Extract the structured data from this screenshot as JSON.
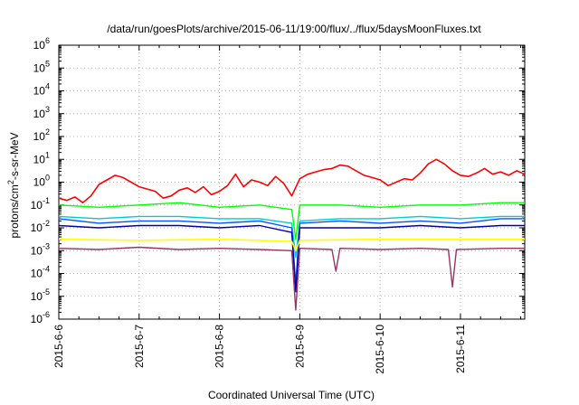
{
  "chart_data": {
    "type": "line",
    "title": "/data/run/goesPlots/archive/2015-06-11/19:00/flux/../flux/5daysMoonFluxes.txt",
    "xlabel": "Coordinated Universal Time (UTC)",
    "ylabel_main": "protons/cm",
    "ylabel_sup": "2",
    "ylabel_rest": "-s-sr-MeV",
    "y_scale": "log",
    "ylim_exp": [
      -6,
      6
    ],
    "y_ticks": [
      {
        "base": "10",
        "exp": "-6"
      },
      {
        "base": "10",
        "exp": "-5"
      },
      {
        "base": "10",
        "exp": "-4"
      },
      {
        "base": "10",
        "exp": "-3"
      },
      {
        "base": "10",
        "exp": "-2"
      },
      {
        "base": "10",
        "exp": "-1"
      },
      {
        "base": "10",
        "exp": "0"
      },
      {
        "base": "10",
        "exp": "1"
      },
      {
        "base": "10",
        "exp": "2"
      },
      {
        "base": "10",
        "exp": "3"
      },
      {
        "base": "10",
        "exp": "4"
      },
      {
        "base": "10",
        "exp": "5"
      },
      {
        "base": "10",
        "exp": "6"
      }
    ],
    "xlim_days": [
      0,
      5.8
    ],
    "x_ticks": [
      "2015-6-6",
      "2015-6-7",
      "2015-6-8",
      "2015-6-9",
      "2015-6-10",
      "2015-6-11"
    ],
    "grid": true,
    "legend": "none",
    "series": [
      {
        "color": "#ff0000",
        "width": 1.6,
        "values": [
          [
            0,
            -0.7
          ],
          [
            0.1,
            -0.8
          ],
          [
            0.2,
            -0.65
          ],
          [
            0.3,
            -0.9
          ],
          [
            0.4,
            -0.6
          ],
          [
            0.5,
            -0.1
          ],
          [
            0.6,
            0.1
          ],
          [
            0.7,
            0.3
          ],
          [
            0.8,
            0.2
          ],
          [
            0.9,
            0.0
          ],
          [
            1.0,
            -0.2
          ],
          [
            1.1,
            -0.3
          ],
          [
            1.2,
            -0.4
          ],
          [
            1.3,
            -0.7
          ],
          [
            1.4,
            -0.6
          ],
          [
            1.5,
            -0.35
          ],
          [
            1.6,
            -0.25
          ],
          [
            1.7,
            -0.45
          ],
          [
            1.8,
            -0.2
          ],
          [
            1.9,
            -0.55
          ],
          [
            2.0,
            -0.4
          ],
          [
            2.1,
            -0.15
          ],
          [
            2.2,
            0.35
          ],
          [
            2.3,
            -0.2
          ],
          [
            2.4,
            0.1
          ],
          [
            2.5,
            0.0
          ],
          [
            2.6,
            -0.15
          ],
          [
            2.7,
            0.25
          ],
          [
            2.8,
            -0.05
          ],
          [
            2.9,
            -0.6
          ],
          [
            3.0,
            0.15
          ],
          [
            3.1,
            0.35
          ],
          [
            3.2,
            0.45
          ],
          [
            3.3,
            0.55
          ],
          [
            3.4,
            0.6
          ],
          [
            3.5,
            0.75
          ],
          [
            3.6,
            0.7
          ],
          [
            3.7,
            0.5
          ],
          [
            3.8,
            0.3
          ],
          [
            3.9,
            0.2
          ],
          [
            4.0,
            0.1
          ],
          [
            4.1,
            -0.15
          ],
          [
            4.2,
            0.0
          ],
          [
            4.3,
            0.15
          ],
          [
            4.4,
            0.1
          ],
          [
            4.5,
            0.4
          ],
          [
            4.6,
            0.8
          ],
          [
            4.7,
            1.0
          ],
          [
            4.8,
            0.8
          ],
          [
            4.9,
            0.5
          ],
          [
            5.0,
            0.3
          ],
          [
            5.1,
            0.25
          ],
          [
            5.2,
            0.4
          ],
          [
            5.3,
            0.6
          ],
          [
            5.4,
            0.35
          ],
          [
            5.5,
            0.45
          ],
          [
            5.6,
            0.3
          ],
          [
            5.7,
            0.5
          ],
          [
            5.8,
            0.35
          ]
        ]
      },
      {
        "color": "#00ff00",
        "width": 1.4,
        "values": [
          [
            0,
            -1.0
          ],
          [
            0.5,
            -1.1
          ],
          [
            1.0,
            -1.0
          ],
          [
            1.5,
            -0.9
          ],
          [
            2.0,
            -1.1
          ],
          [
            2.5,
            -1.0
          ],
          [
            2.9,
            -1.2
          ],
          [
            2.95,
            -2.5
          ],
          [
            3.0,
            -1.0
          ],
          [
            3.5,
            -1.0
          ],
          [
            4.0,
            -1.1
          ],
          [
            4.5,
            -1.0
          ],
          [
            5.0,
            -1.0
          ],
          [
            5.5,
            -0.9
          ],
          [
            5.8,
            -0.9
          ]
        ]
      },
      {
        "color": "#00cccc",
        "width": 1.4,
        "values": [
          [
            0,
            -1.5
          ],
          [
            0.5,
            -1.6
          ],
          [
            1.0,
            -1.5
          ],
          [
            1.5,
            -1.5
          ],
          [
            2.0,
            -1.6
          ],
          [
            2.5,
            -1.6
          ],
          [
            2.9,
            -1.8
          ],
          [
            2.95,
            -3.3
          ],
          [
            3.0,
            -1.7
          ],
          [
            3.5,
            -1.6
          ],
          [
            4.0,
            -1.6
          ],
          [
            4.5,
            -1.5
          ],
          [
            5.0,
            -1.6
          ],
          [
            5.5,
            -1.5
          ],
          [
            5.8,
            -1.5
          ]
        ]
      },
      {
        "color": "#0055ff",
        "width": 1.4,
        "values": [
          [
            0,
            -1.6
          ],
          [
            0.5,
            -1.8
          ],
          [
            1.0,
            -1.7
          ],
          [
            1.5,
            -1.7
          ],
          [
            2.0,
            -1.8
          ],
          [
            2.5,
            -1.7
          ],
          [
            2.9,
            -2.0
          ],
          [
            2.95,
            -4.5
          ],
          [
            3.0,
            -1.8
          ],
          [
            3.5,
            -1.7
          ],
          [
            4.0,
            -1.8
          ],
          [
            4.5,
            -1.7
          ],
          [
            5.0,
            -1.8
          ],
          [
            5.5,
            -1.6
          ],
          [
            5.8,
            -1.6
          ]
        ]
      },
      {
        "color": "#0000aa",
        "width": 1.4,
        "values": [
          [
            0,
            -1.9
          ],
          [
            0.5,
            -2.0
          ],
          [
            1.0,
            -1.9
          ],
          [
            1.5,
            -1.9
          ],
          [
            2.0,
            -2.0
          ],
          [
            2.5,
            -1.9
          ],
          [
            2.9,
            -2.2
          ],
          [
            2.95,
            -4.8
          ],
          [
            3.0,
            -2.0
          ],
          [
            3.5,
            -2.0
          ],
          [
            4.0,
            -2.0
          ],
          [
            4.5,
            -1.9
          ],
          [
            5.0,
            -2.0
          ],
          [
            5.5,
            -1.9
          ],
          [
            5.8,
            -1.9
          ]
        ]
      },
      {
        "color": "#ffff00",
        "width": 1.6,
        "values": [
          [
            0,
            -2.5
          ],
          [
            1.0,
            -2.55
          ],
          [
            2.0,
            -2.5
          ],
          [
            2.9,
            -2.6
          ],
          [
            2.95,
            -3.0
          ],
          [
            3.0,
            -2.55
          ],
          [
            4.0,
            -2.5
          ],
          [
            5.0,
            -2.5
          ],
          [
            5.8,
            -2.5
          ]
        ]
      },
      {
        "color": "#993366",
        "width": 1.4,
        "values": [
          [
            0,
            -2.9
          ],
          [
            0.5,
            -2.95
          ],
          [
            1.0,
            -2.85
          ],
          [
            1.5,
            -2.95
          ],
          [
            2.0,
            -2.9
          ],
          [
            2.5,
            -2.95
          ],
          [
            2.9,
            -3.0
          ],
          [
            2.95,
            -5.6
          ],
          [
            3.0,
            -2.9
          ],
          [
            3.4,
            -2.95
          ],
          [
            3.45,
            -3.9
          ],
          [
            3.5,
            -2.9
          ],
          [
            4.0,
            -2.95
          ],
          [
            4.5,
            -2.9
          ],
          [
            4.85,
            -2.95
          ],
          [
            4.9,
            -4.6
          ],
          [
            4.95,
            -2.95
          ],
          [
            5.5,
            -2.9
          ],
          [
            5.8,
            -2.9
          ]
        ]
      }
    ]
  }
}
